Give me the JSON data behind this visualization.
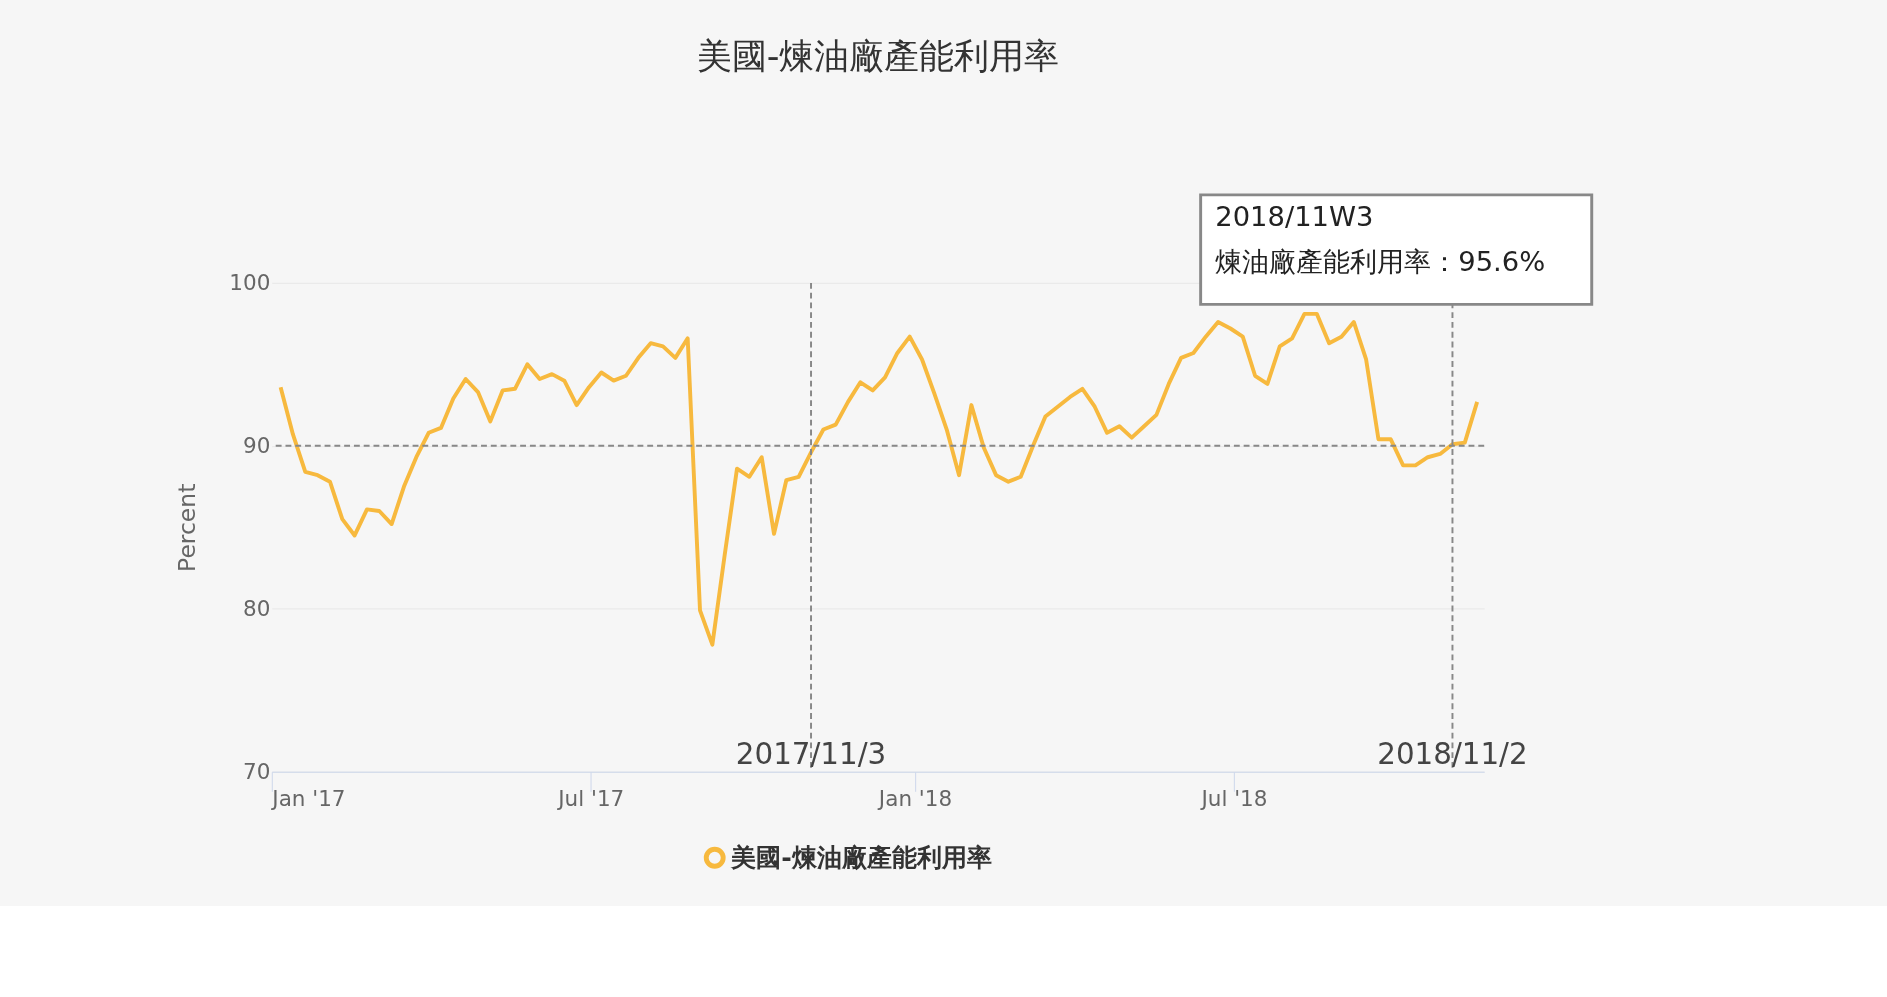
{
  "chart_data": {
    "type": "line",
    "title": "美國-煉油廠產能利用率",
    "ylabel": "Percent",
    "x": [
      "2017-01-06",
      "2017-01-13",
      "2017-01-20",
      "2017-01-27",
      "2017-02-03",
      "2017-02-10",
      "2017-02-17",
      "2017-02-24",
      "2017-03-03",
      "2017-03-10",
      "2017-03-17",
      "2017-03-24",
      "2017-03-31",
      "2017-04-07",
      "2017-04-14",
      "2017-04-21",
      "2017-04-28",
      "2017-05-05",
      "2017-05-12",
      "2017-05-19",
      "2017-05-26",
      "2017-06-02",
      "2017-06-09",
      "2017-06-16",
      "2017-06-23",
      "2017-06-30",
      "2017-07-07",
      "2017-07-14",
      "2017-07-21",
      "2017-07-28",
      "2017-08-04",
      "2017-08-11",
      "2017-08-18",
      "2017-08-25",
      "2017-09-01",
      "2017-09-08",
      "2017-09-15",
      "2017-09-22",
      "2017-09-29",
      "2017-10-06",
      "2017-10-13",
      "2017-10-20",
      "2017-10-27",
      "2017-11-03",
      "2017-11-10",
      "2017-11-17",
      "2017-11-24",
      "2017-12-01",
      "2017-12-08",
      "2017-12-15",
      "2017-12-22",
      "2017-12-29",
      "2018-01-05",
      "2018-01-12",
      "2018-01-19",
      "2018-01-26",
      "2018-02-02",
      "2018-02-09",
      "2018-02-16",
      "2018-02-23",
      "2018-03-02",
      "2018-03-09",
      "2018-03-16",
      "2018-03-23",
      "2018-03-30",
      "2018-04-06",
      "2018-04-13",
      "2018-04-20",
      "2018-04-27",
      "2018-05-04",
      "2018-05-11",
      "2018-05-18",
      "2018-05-25",
      "2018-06-01",
      "2018-06-08",
      "2018-06-15",
      "2018-06-22",
      "2018-06-29",
      "2018-07-06",
      "2018-07-13",
      "2018-07-20",
      "2018-07-27",
      "2018-08-03",
      "2018-08-10",
      "2018-08-17",
      "2018-08-24",
      "2018-08-31",
      "2018-09-07",
      "2018-09-14",
      "2018-09-21",
      "2018-09-28",
      "2018-10-05",
      "2018-10-12",
      "2018-10-19",
      "2018-10-26",
      "2018-11-02",
      "2018-11-09",
      "2018-11-16"
    ],
    "series": [
      {
        "name": "美國-煉油廠產能利用率",
        "color": "#f7b93e",
        "values": [
          93.6,
          90.7,
          88.4,
          88.2,
          87.8,
          85.5,
          84.5,
          86.1,
          86.0,
          85.2,
          87.5,
          89.3,
          90.8,
          91.1,
          92.9,
          94.1,
          93.3,
          91.5,
          93.4,
          93.5,
          95.0,
          94.1,
          94.4,
          94.0,
          92.5,
          93.6,
          94.5,
          94.0,
          94.3,
          95.4,
          96.3,
          96.1,
          95.4,
          96.6,
          79.9,
          77.8,
          83.3,
          88.6,
          88.1,
          89.3,
          84.6,
          87.9,
          88.1,
          89.6,
          91.0,
          91.3,
          92.7,
          93.9,
          93.4,
          94.2,
          95.7,
          96.7,
          95.3,
          93.2,
          91.0,
          88.2,
          92.5,
          89.9,
          88.2,
          87.8,
          88.1,
          90.0,
          91.8,
          92.4,
          93.0,
          93.5,
          92.4,
          90.8,
          91.2,
          90.5,
          91.2,
          91.9,
          93.8,
          95.4,
          95.7,
          96.7,
          97.6,
          97.2,
          96.7,
          94.3,
          93.8,
          96.1,
          96.6,
          98.1,
          98.1,
          96.3,
          96.7,
          97.6,
          95.3,
          90.4,
          90.4,
          88.8,
          88.8,
          89.3,
          89.5,
          90.1,
          90.2,
          92.7
        ]
      }
    ],
    "xlim": [
      "2017-01-01",
      "2018-11-20"
    ],
    "xticks": [
      {
        "value": "2017-01-01",
        "label": "Jan '17"
      },
      {
        "value": "2017-07-01",
        "label": "Jul '17"
      },
      {
        "value": "2018-01-01",
        "label": "Jan '18"
      },
      {
        "value": "2018-07-01",
        "label": "Jul '18"
      }
    ],
    "ylim": [
      70,
      100
    ],
    "yticks": [
      70,
      80,
      90,
      100
    ],
    "grid": "y",
    "legend": "bottom",
    "line_style": "solid",
    "ref_lines": [
      {
        "axis": "y",
        "value": 90,
        "color": "#888888",
        "line_style": "dashed"
      },
      {
        "axis": "x",
        "value": "2017-11-03",
        "label": "2017/11/3",
        "color": "#888888",
        "line_style": "dashed"
      },
      {
        "axis": "x",
        "value": "2018-11-02",
        "label": "2018/11/2",
        "color": "#888888",
        "line_style": "dashed"
      }
    ],
    "annotations": [
      "2018/11W3",
      "煉油廠產能利用率：95.6%"
    ]
  }
}
